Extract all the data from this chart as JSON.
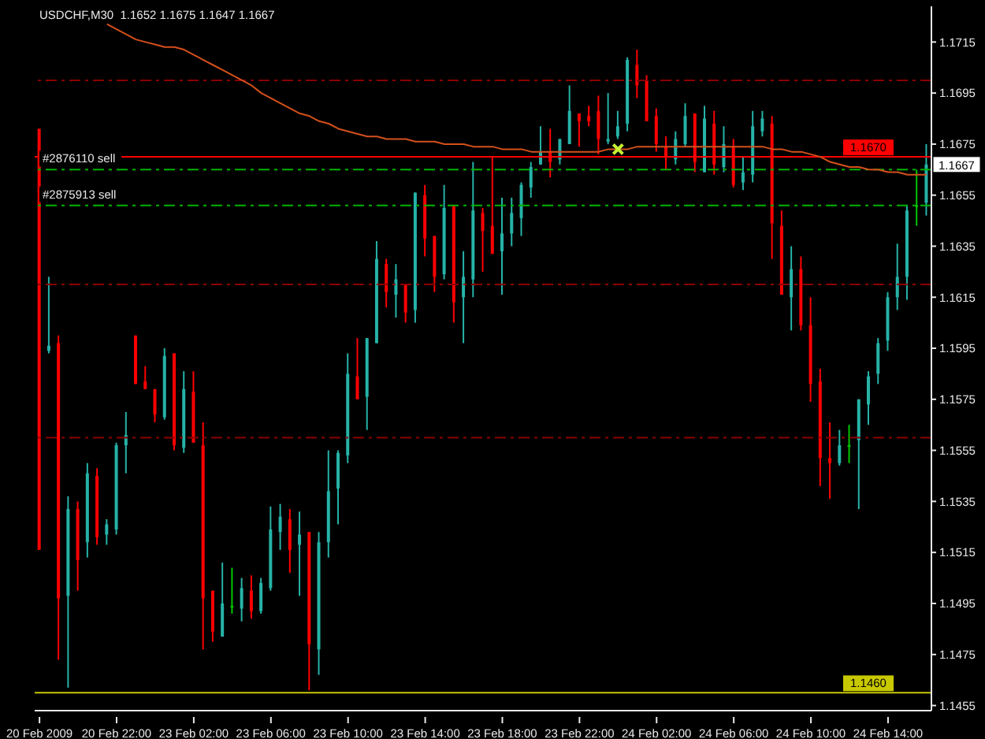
{
  "chart_data": {
    "type": "candlestick",
    "title": "USDCHF,M30  1.1652 1.1675 1.1647 1.1667",
    "categories": [
      "20 Feb 2009",
      null,
      null,
      null,
      null,
      null,
      null,
      null,
      "20 Feb 22:00",
      null,
      null,
      null,
      null,
      null,
      null,
      null,
      "23 Feb 02:00",
      null,
      null,
      null,
      null,
      null,
      null,
      null,
      "23 Feb 06:00",
      null,
      null,
      null,
      null,
      null,
      null,
      null,
      "23 Feb 10:00",
      null,
      null,
      null,
      null,
      null,
      null,
      null,
      "23 Feb 14:00",
      null,
      null,
      null,
      null,
      null,
      null,
      null,
      "23 Feb 18:00",
      null,
      null,
      null,
      null,
      null,
      null,
      null,
      "23 Feb 22:00",
      null,
      null,
      null,
      null,
      null,
      null,
      null,
      "24 Feb 02:00",
      null,
      null,
      null,
      null,
      null,
      null,
      null,
      "24 Feb 06:00",
      null,
      null,
      null,
      null,
      null,
      null,
      null,
      "24 Feb 10:00",
      null,
      null,
      null,
      null,
      null,
      null,
      null,
      "24 Feb 14:00",
      null,
      null,
      null,
      null
    ],
    "ohlc": [
      [
        1.1681,
        1.1681,
        1.1516,
        1.1516
      ],
      [
        1.1594,
        1.1623,
        1.1593,
        1.1596
      ],
      [
        1.1597,
        1.16,
        1.1473,
        1.1497
      ],
      [
        1.1498,
        1.1537,
        1.1462,
        1.1532
      ],
      [
        1.1532,
        1.1535,
        1.15,
        1.1512
      ],
      [
        1.1519,
        1.155,
        1.1513,
        1.1546
      ],
      [
        1.1545,
        1.1548,
        1.1518,
        1.1521
      ],
      [
        1.1522,
        1.1528,
        1.1518,
        1.1526
      ],
      [
        1.1524,
        1.1558,
        1.1522,
        1.1557
      ],
      [
        1.1557,
        1.157,
        1.1546,
        1.1561
      ],
      [
        1.16,
        1.16,
        1.1581,
        1.1581
      ],
      [
        1.1582,
        1.1588,
        1.1579,
        1.1579
      ],
      [
        1.1579,
        1.1579,
        1.1566,
        1.1569
      ],
      [
        1.1568,
        1.1595,
        1.1567,
        1.1592
      ],
      [
        1.1593,
        1.1593,
        1.1555,
        1.1557
      ],
      [
        1.1556,
        1.1586,
        1.1554,
        1.1579
      ],
      [
        1.1578,
        1.1586,
        1.1558,
        1.1558
      ],
      [
        1.1557,
        1.1566,
        1.1477,
        1.1497
      ],
      [
        1.15,
        1.15,
        1.148,
        1.1484
      ],
      [
        1.1482,
        1.1511,
        1.1482,
        1.1495
      ],
      [
        1.1494,
        1.1509,
        1.1491,
        1.1494
      ],
      [
        1.1493,
        1.1505,
        1.1488,
        1.1501
      ],
      [
        1.15,
        1.1506,
        1.1489,
        1.1492
      ],
      [
        1.1492,
        1.1505,
        1.1491,
        1.1503
      ],
      [
        1.1501,
        1.1533,
        1.15,
        1.1524
      ],
      [
        1.1523,
        1.1534,
        1.1516,
        1.1529
      ],
      [
        1.1528,
        1.1532,
        1.1507,
        1.1516
      ],
      [
        1.1518,
        1.1531,
        1.1498,
        1.1522
      ],
      [
        1.1523,
        1.1523,
        1.1461,
        1.1479
      ],
      [
        1.1477,
        1.1523,
        1.1467,
        1.1519
      ],
      [
        1.1519,
        1.1555,
        1.1513,
        1.1539
      ],
      [
        1.154,
        1.1555,
        1.1526,
        1.1554
      ],
      [
        1.1553,
        1.1593,
        1.155,
        1.1585
      ],
      [
        1.1584,
        1.1599,
        1.1575,
        1.1575
      ],
      [
        1.1576,
        1.1599,
        1.1563,
        1.1599
      ],
      [
        1.1597,
        1.1637,
        1.1597,
        1.163
      ],
      [
        1.1628,
        1.163,
        1.1611,
        1.1617
      ],
      [
        1.1616,
        1.1628,
        1.1607,
        1.1622
      ],
      [
        1.162,
        1.162,
        1.1605,
        1.1609
      ],
      [
        1.161,
        1.1656,
        1.1605,
        1.1656
      ],
      [
        1.1655,
        1.1659,
        1.1631,
        1.1638
      ],
      [
        1.1639,
        1.1639,
        1.1617,
        1.1623
      ],
      [
        1.1624,
        1.1659,
        1.1622,
        1.165
      ],
      [
        1.1651,
        1.1651,
        1.1605,
        1.1613
      ],
      [
        1.1615,
        1.1633,
        1.1597,
        1.1623
      ],
      [
        1.1622,
        1.1668,
        1.1615,
        1.1649
      ],
      [
        1.1648,
        1.165,
        1.1625,
        1.1641
      ],
      [
        1.1643,
        1.167,
        1.1632,
        1.1632
      ],
      [
        1.1633,
        1.1654,
        1.1616,
        1.164
      ],
      [
        1.164,
        1.1654,
        1.1635,
        1.1648
      ],
      [
        1.1646,
        1.166,
        1.1639,
        1.1659
      ],
      [
        1.1658,
        1.1668,
        1.1654,
        1.1666
      ],
      [
        1.1667,
        1.1682,
        1.1667,
        1.1672
      ],
      [
        1.1672,
        1.1681,
        1.1662,
        1.1668
      ],
      [
        1.1669,
        1.1677,
        1.1667,
        1.1677
      ],
      [
        1.1675,
        1.1698,
        1.1675,
        1.1688
      ],
      [
        1.1687,
        1.1687,
        1.1674,
        1.1684
      ],
      [
        1.1686,
        1.169,
        1.1682,
        1.1684
      ],
      [
        1.1688,
        1.1694,
        1.1671,
        1.1677
      ],
      [
        1.1676,
        1.1695,
        1.1675,
        1.1677
      ],
      [
        1.1678,
        1.1688,
        1.1677,
        1.1682
      ],
      [
        1.1683,
        1.1709,
        1.168,
        1.1708
      ],
      [
        1.1706,
        1.1712,
        1.1693,
        1.1698
      ],
      [
        1.17,
        1.1702,
        1.1684,
        1.1684
      ],
      [
        1.1686,
        1.1689,
        1.1672,
        1.1675
      ],
      [
        1.1674,
        1.1678,
        1.1665,
        1.167
      ],
      [
        1.1669,
        1.168,
        1.1667,
        1.1677
      ],
      [
        1.1675,
        1.1691,
        1.1674,
        1.1686
      ],
      [
        1.1687,
        1.1687,
        1.1664,
        1.1668
      ],
      [
        1.1664,
        1.169,
        1.1664,
        1.1685
      ],
      [
        1.1683,
        1.1688,
        1.1663,
        1.1667
      ],
      [
        1.1666,
        1.1682,
        1.1664,
        1.1675
      ],
      [
        1.1674,
        1.1677,
        1.1658,
        1.1659
      ],
      [
        1.166,
        1.167,
        1.1657,
        1.1664
      ],
      [
        1.1663,
        1.1688,
        1.166,
        1.1682
      ],
      [
        1.168,
        1.1688,
        1.1678,
        1.1685
      ],
      [
        1.1683,
        1.1686,
        1.163,
        1.1644
      ],
      [
        1.1643,
        1.1649,
        1.1616,
        1.1616
      ],
      [
        1.1615,
        1.1635,
        1.1602,
        1.1626
      ],
      [
        1.1626,
        1.1631,
        1.1602,
        1.1604
      ],
      [
        1.1604,
        1.1615,
        1.1574,
        1.1581
      ],
      [
        1.1582,
        1.1587,
        1.1541,
        1.1552
      ],
      [
        1.1552,
        1.1566,
        1.1536,
        1.155
      ],
      [
        1.155,
        1.1563,
        1.1549,
        1.1557
      ],
      [
        1.1557,
        1.1565,
        1.155,
        1.1557
      ],
      [
        1.1559,
        1.1575,
        1.1532,
        1.1575
      ],
      [
        1.1573,
        1.1586,
        1.1565,
        1.1584
      ],
      [
        1.1585,
        1.1599,
        1.1581,
        1.1597
      ],
      [
        1.1598,
        1.1617,
        1.1594,
        1.1615
      ],
      [
        1.1615,
        1.1636,
        1.161,
        1.1623
      ],
      [
        1.1623,
        1.1651,
        1.1614,
        1.1649
      ],
      [
        1.1651,
        1.1665,
        1.1643,
        1.1651
      ],
      [
        1.1652,
        1.1675,
        1.1647,
        1.1667
      ]
    ],
    "colors": [
      "#ff0000",
      "#26b3a8",
      "#ff0000",
      "#26b3a8",
      "#ff0000",
      "#26b3a8",
      "#ff0000",
      "#26b3a8",
      "#26b3a8",
      "#26b3a8",
      "#ff0000",
      "#ff0000",
      "#ff0000",
      "#26b3a8",
      "#ff0000",
      "#26b3a8",
      "#ff0000",
      "#ff0000",
      "#ff0000",
      "#26b3a8",
      "#00c800",
      "#26b3a8",
      "#ff0000",
      "#26b3a8",
      "#26b3a8",
      "#26b3a8",
      "#ff0000",
      "#26b3a8",
      "#ff0000",
      "#26b3a8",
      "#26b3a8",
      "#26b3a8",
      "#26b3a8",
      "#ff0000",
      "#26b3a8",
      "#26b3a8",
      "#ff0000",
      "#26b3a8",
      "#ff0000",
      "#26b3a8",
      "#ff0000",
      "#ff0000",
      "#26b3a8",
      "#ff0000",
      "#26b3a8",
      "#26b3a8",
      "#ff0000",
      "#ff0000",
      "#26b3a8",
      "#26b3a8",
      "#26b3a8",
      "#26b3a8",
      "#26b3a8",
      "#ff0000",
      "#26b3a8",
      "#26b3a8",
      "#ff0000",
      "#ff0000",
      "#ff0000",
      "#26b3a8",
      "#26b3a8",
      "#26b3a8",
      "#ff0000",
      "#ff0000",
      "#ff0000",
      "#ff0000",
      "#26b3a8",
      "#26b3a8",
      "#ff0000",
      "#26b3a8",
      "#ff0000",
      "#26b3a8",
      "#ff0000",
      "#26b3a8",
      "#26b3a8",
      "#26b3a8",
      "#ff0000",
      "#ff0000",
      "#26b3a8",
      "#ff0000",
      "#ff0000",
      "#ff0000",
      "#ff0000",
      "#26b3a8",
      "#00c800",
      "#26b3a8",
      "#26b3a8",
      "#26b3a8",
      "#26b3a8",
      "#26b3a8",
      "#26b3a8",
      "#00c800",
      "#26b3a8"
    ],
    "series": [
      {
        "type": "line",
        "color": "#d4501c",
        "values": [
          null,
          null,
          null,
          null,
          null,
          null,
          null,
          1.1722,
          1.172,
          1.1718,
          1.1716,
          1.1715,
          1.1714,
          1.1713,
          1.1713,
          1.1712,
          1.171,
          1.1708,
          1.1706,
          1.1704,
          1.1702,
          1.17,
          1.1698,
          1.1695,
          1.1693,
          1.1691,
          1.1689,
          1.1687,
          1.1686,
          1.1684,
          1.1683,
          1.1681,
          1.168,
          1.1679,
          1.1678,
          1.1678,
          1.1677,
          1.1677,
          1.1677,
          1.1676,
          1.1676,
          1.1676,
          1.1675,
          1.1675,
          1.1675,
          1.1674,
          1.1674,
          1.1674,
          1.1673,
          1.1673,
          1.1673,
          1.1672,
          1.1672,
          1.1672,
          1.1672,
          1.1672,
          1.1672,
          1.1672,
          1.1672,
          1.1673,
          1.1673,
          1.1673,
          1.1674,
          1.1674,
          1.1674,
          1.1674,
          1.1674,
          1.1674,
          1.1674,
          1.1674,
          1.1674,
          1.1674,
          1.1674,
          1.1674,
          1.1674,
          1.1674,
          1.1673,
          1.1673,
          1.1672,
          1.1672,
          1.1671,
          1.167,
          1.1668,
          1.1667,
          1.1666,
          1.1666,
          1.1665,
          1.1665,
          1.1664,
          1.1664,
          1.1663,
          1.1663,
          1.1663
        ]
      },
      {
        "type": "scatter",
        "color": "#c8f032",
        "marker": "cross",
        "values": [
          null,
          null,
          null,
          null,
          null,
          null,
          null,
          null,
          null,
          null,
          null,
          null,
          null,
          null,
          null,
          null,
          null,
          null,
          null,
          null,
          null,
          null,
          null,
          null,
          null,
          null,
          null,
          null,
          null,
          null,
          null,
          null,
          null,
          null,
          null,
          null,
          null,
          null,
          null,
          null,
          null,
          null,
          null,
          null,
          null,
          null,
          null,
          null,
          null,
          null,
          null,
          null,
          null,
          null,
          null,
          null,
          null,
          null,
          null,
          null,
          1.1673,
          null,
          null,
          null,
          null,
          null,
          null,
          null,
          null,
          null,
          null,
          null,
          null,
          null,
          null,
          null,
          null,
          null,
          null,
          null,
          null,
          null,
          null,
          null,
          null,
          null,
          null,
          null,
          null,
          null,
          null,
          null,
          null
        ]
      }
    ],
    "ylim": [
      1.1453,
      1.1729
    ],
    "yticks": [
      1.1455,
      1.1475,
      1.1495,
      1.1515,
      1.1535,
      1.1555,
      1.1575,
      1.1595,
      1.1615,
      1.1635,
      1.1655,
      1.1675,
      1.1695,
      1.1715
    ],
    "ref_lines": [
      {
        "axis": "y",
        "value": 1.17,
        "color": "#8b0000",
        "line_style": "dashed"
      },
      {
        "axis": "y",
        "value": 1.162,
        "color": "#8b0000",
        "line_style": "dashed"
      },
      {
        "axis": "y",
        "value": 1.156,
        "color": "#8b0000",
        "line_style": "dashed"
      },
      {
        "axis": "y",
        "value": 1.167,
        "color": "#ff0000",
        "line_style": "solid",
        "label": "1.1670"
      },
      {
        "axis": "y",
        "value": 1.1665,
        "color": "#00b400",
        "line_style": "dashed",
        "label": "#2876110 sell"
      },
      {
        "axis": "y",
        "value": 1.1651,
        "color": "#00b400",
        "line_style": "dashed",
        "label": "#2875913 sell"
      },
      {
        "axis": "y",
        "value": 1.146,
        "color": "#c8c800",
        "line_style": "solid",
        "label": "1.1460"
      }
    ],
    "annotations": [
      {
        "text": "1.1667",
        "y": 1.1667
      }
    ]
  }
}
